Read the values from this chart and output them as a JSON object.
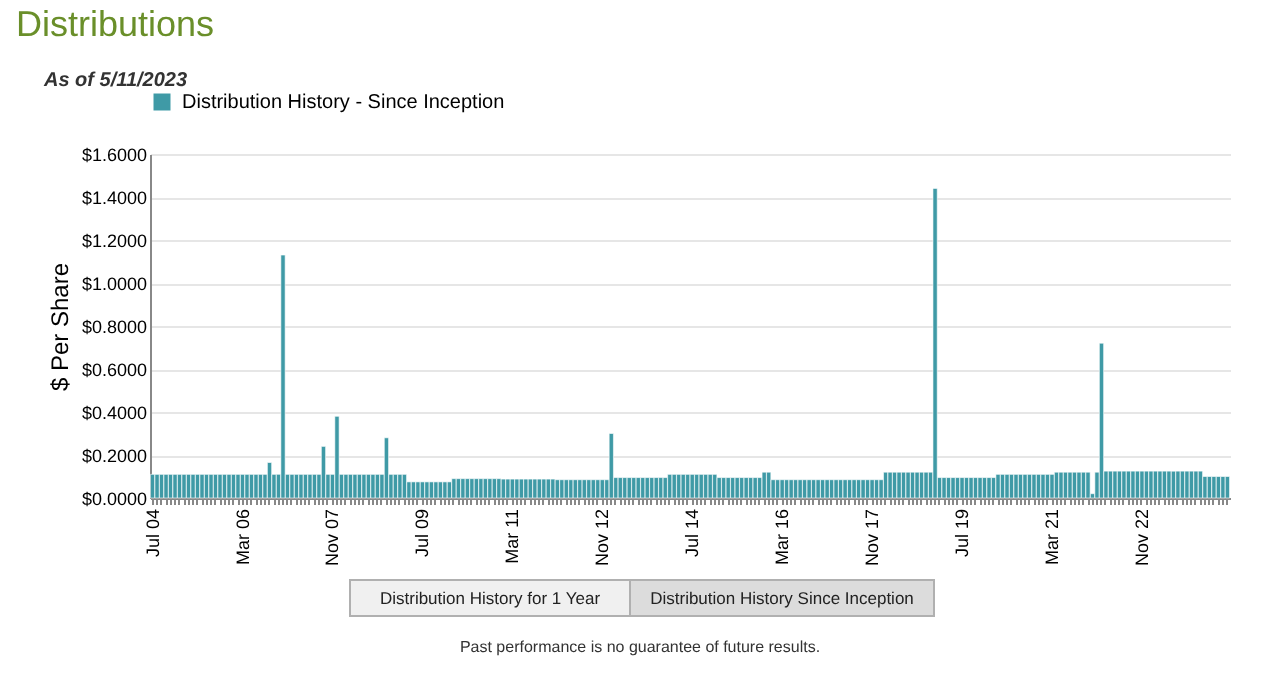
{
  "chart_data": {
    "type": "bar",
    "title": "Distributions",
    "subtitle": "As of 5/11/2023",
    "ylabel": "$ Per Share",
    "categories": [
      "Jul 04",
      null,
      null,
      null,
      null,
      null,
      null,
      null,
      null,
      null,
      null,
      null,
      null,
      null,
      null,
      null,
      null,
      null,
      null,
      null,
      "Mar 06",
      null,
      null,
      null,
      null,
      null,
      null,
      null,
      null,
      null,
      null,
      null,
      null,
      null,
      null,
      null,
      null,
      null,
      null,
      null,
      "Nov 07",
      null,
      null,
      null,
      null,
      null,
      null,
      null,
      null,
      null,
      null,
      null,
      null,
      null,
      null,
      null,
      null,
      null,
      null,
      null,
      "Jul 09",
      null,
      null,
      null,
      null,
      null,
      null,
      null,
      null,
      null,
      null,
      null,
      null,
      null,
      null,
      null,
      null,
      null,
      null,
      null,
      "Mar 11",
      null,
      null,
      null,
      null,
      null,
      null,
      null,
      null,
      null,
      null,
      null,
      null,
      null,
      null,
      null,
      null,
      null,
      null,
      null,
      "Nov 12",
      null,
      null,
      null,
      null,
      null,
      null,
      null,
      null,
      null,
      null,
      null,
      null,
      null,
      null,
      null,
      null,
      null,
      null,
      null,
      "Jul 14",
      null,
      null,
      null,
      null,
      null,
      null,
      null,
      null,
      null,
      null,
      null,
      null,
      null,
      null,
      null,
      null,
      null,
      null,
      null,
      "Mar 16",
      null,
      null,
      null,
      null,
      null,
      null,
      null,
      null,
      null,
      null,
      null,
      null,
      null,
      null,
      null,
      null,
      null,
      null,
      null,
      "Nov 17",
      null,
      null,
      null,
      null,
      null,
      null,
      null,
      null,
      null,
      null,
      null,
      null,
      null,
      null,
      null,
      null,
      null,
      null,
      null,
      "Jul 19",
      null,
      null,
      null,
      null,
      null,
      null,
      null,
      null,
      null,
      null,
      null,
      null,
      null,
      null,
      null,
      null,
      null,
      null,
      null,
      "Mar 21",
      null,
      null,
      null,
      null,
      null,
      null,
      null,
      null,
      null,
      null,
      null,
      null,
      null,
      null,
      null,
      null,
      null,
      null,
      null,
      "Nov 22",
      null,
      null,
      null,
      null,
      null,
      null,
      null,
      null,
      null,
      null,
      null,
      null,
      null,
      null,
      null,
      null,
      null,
      null,
      null
    ],
    "series": [
      {
        "name": "Distribution History - Since Inception",
        "color": "#3f9aa6",
        "values": [
          0.11,
          0.11,
          0.11,
          0.11,
          0.11,
          0.11,
          0.11,
          0.11,
          0.11,
          0.11,
          0.11,
          0.11,
          0.11,
          0.11,
          0.11,
          0.11,
          0.11,
          0.11,
          0.11,
          0.11,
          0.11,
          0.11,
          0.11,
          0.11,
          0.11,
          0.11,
          0.165,
          0.11,
          0.11,
          1.13,
          0.11,
          0.11,
          0.11,
          0.11,
          0.11,
          0.11,
          0.11,
          0.11,
          0.24,
          0.11,
          0.11,
          0.38,
          0.11,
          0.11,
          0.11,
          0.11,
          0.11,
          0.11,
          0.11,
          0.11,
          0.11,
          0.11,
          0.28,
          0.11,
          0.11,
          0.11,
          0.11,
          0.075,
          0.075,
          0.075,
          0.075,
          0.075,
          0.075,
          0.075,
          0.075,
          0.075,
          0.075,
          0.09,
          0.09,
          0.09,
          0.09,
          0.09,
          0.09,
          0.09,
          0.09,
          0.09,
          0.09,
          0.09,
          0.088,
          0.088,
          0.088,
          0.088,
          0.088,
          0.088,
          0.088,
          0.088,
          0.088,
          0.088,
          0.088,
          0.088,
          0.085,
          0.085,
          0.085,
          0.085,
          0.085,
          0.085,
          0.085,
          0.085,
          0.085,
          0.085,
          0.085,
          0.085,
          0.3,
          0.095,
          0.095,
          0.095,
          0.095,
          0.095,
          0.095,
          0.095,
          0.095,
          0.095,
          0.095,
          0.095,
          0.095,
          0.11,
          0.11,
          0.11,
          0.11,
          0.11,
          0.11,
          0.11,
          0.11,
          0.11,
          0.11,
          0.11,
          0.095,
          0.095,
          0.095,
          0.095,
          0.095,
          0.095,
          0.095,
          0.095,
          0.095,
          0.095,
          0.12,
          0.12,
          0.085,
          0.085,
          0.085,
          0.085,
          0.085,
          0.085,
          0.085,
          0.085,
          0.085,
          0.085,
          0.085,
          0.085,
          0.085,
          0.085,
          0.085,
          0.085,
          0.085,
          0.085,
          0.085,
          0.085,
          0.085,
          0.085,
          0.085,
          0.085,
          0.085,
          0.12,
          0.12,
          0.12,
          0.12,
          0.12,
          0.12,
          0.12,
          0.12,
          0.12,
          0.12,
          0.12,
          1.44,
          0.095,
          0.095,
          0.095,
          0.095,
          0.095,
          0.095,
          0.095,
          0.095,
          0.095,
          0.095,
          0.095,
          0.095,
          0.095,
          0.11,
          0.11,
          0.11,
          0.11,
          0.11,
          0.11,
          0.11,
          0.11,
          0.11,
          0.11,
          0.11,
          0.11,
          0.11,
          0.12,
          0.12,
          0.12,
          0.12,
          0.12,
          0.12,
          0.12,
          0.12,
          0.02,
          0.12,
          0.72,
          0.125,
          0.125,
          0.125,
          0.125,
          0.125,
          0.125,
          0.125,
          0.125,
          0.125,
          0.125,
          0.125,
          0.125,
          0.125,
          0.125,
          0.125,
          0.125,
          0.125,
          0.125,
          0.125,
          0.125,
          0.125,
          0.125,
          0.1,
          0.1,
          0.1,
          0.1,
          0.1,
          0.1
        ]
      }
    ],
    "ylim": [
      0,
      1.6
    ],
    "yticks": [
      {
        "value": 0,
        "label": "$0.0000"
      },
      {
        "value": 0.2,
        "label": "$0.2000"
      },
      {
        "value": 0.4,
        "label": "$0.4000"
      },
      {
        "value": 0.6,
        "label": "$0.6000"
      },
      {
        "value": 0.8,
        "label": "$0.8000"
      },
      {
        "value": 1.0,
        "label": "$1.0000"
      },
      {
        "value": 1.2,
        "label": "$1.2000"
      },
      {
        "value": 1.4,
        "label": "$1.4000"
      },
      {
        "value": 1.6,
        "label": "$1.6000"
      }
    ],
    "grid": "y",
    "legend": "top",
    "annotations": [
      "Distribution History for 1 Year",
      "Distribution History Since Inception",
      "Past performance is no guarantee of future results."
    ]
  }
}
